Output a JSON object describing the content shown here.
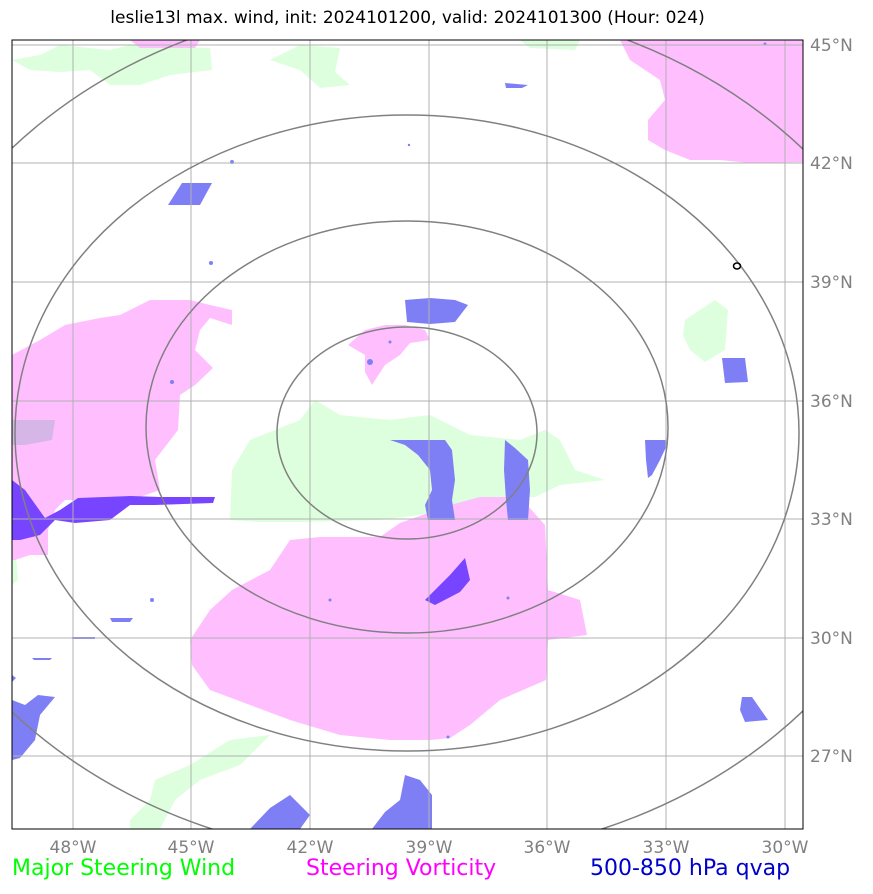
{
  "title": "leslie13l max. wind, init: 2024101200, valid: 2024101300 (Hour: 024)",
  "latitude_labels": [
    "45°N",
    "42°N",
    "39°N",
    "36°N",
    "33°N",
    "30°N",
    "27°N"
  ],
  "longitude_labels": [
    "48°W",
    "45°W",
    "42°W",
    "39°W",
    "36°W",
    "33°W",
    "30°W"
  ],
  "legend": [
    {
      "label": "Major Steering Wind",
      "color": "#00ff00"
    },
    {
      "label": "Steering Vorticity",
      "color": "#ff00ff"
    },
    {
      "label": "500-850 hPa qvap",
      "color": "#0000cc"
    }
  ],
  "colors": {
    "wind_fill": "#ddffdd",
    "vorticity_fill": "#ffbfff",
    "qvap_fill": "#7f7ff5",
    "overlap_fill": "#7744ff",
    "grid": "#b0b0b0",
    "range_rings": "#808080"
  }
}
